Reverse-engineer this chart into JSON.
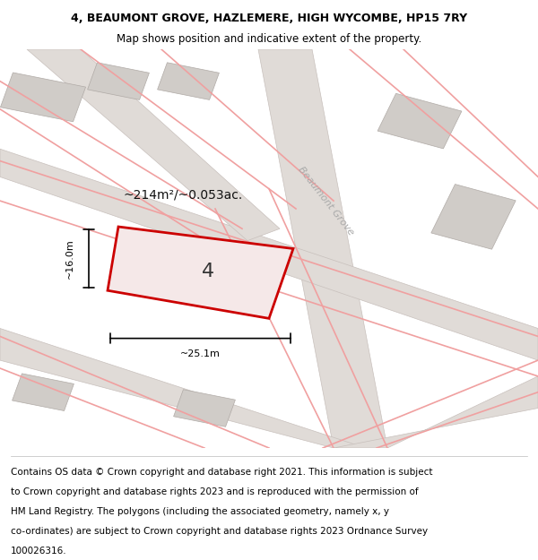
{
  "title_line1": "4, BEAUMONT GROVE, HAZLEMERE, HIGH WYCOMBE, HP15 7RY",
  "title_line2": "Map shows position and indicative extent of the property.",
  "footer_lines": [
    "Contains OS data © Crown copyright and database right 2021. This information is subject",
    "to Crown copyright and database rights 2023 and is reproduced with the permission of",
    "HM Land Registry. The polygons (including the associated geometry, namely x, y",
    "co-ordinates) are subject to Crown copyright and database rights 2023 Ordnance Survey",
    "100026316."
  ],
  "bg_color": "#faf8f7",
  "pink_line_color": "#f0a0a0",
  "red_plot_color": "#cc0000",
  "road_fill": "#e0dbd7",
  "road_edge": "#c8c0bc",
  "building_fill": "#d0ccc8",
  "building_edge": "#b0aaa6",
  "street_label": "Beaumont Grove",
  "area_label": "~214m²/~0.053ac.",
  "plot_label": "4",
  "dim_width": "~25.1m",
  "dim_height": "~16.0m",
  "title_fontsize": 9,
  "footer_fontsize": 7.5
}
